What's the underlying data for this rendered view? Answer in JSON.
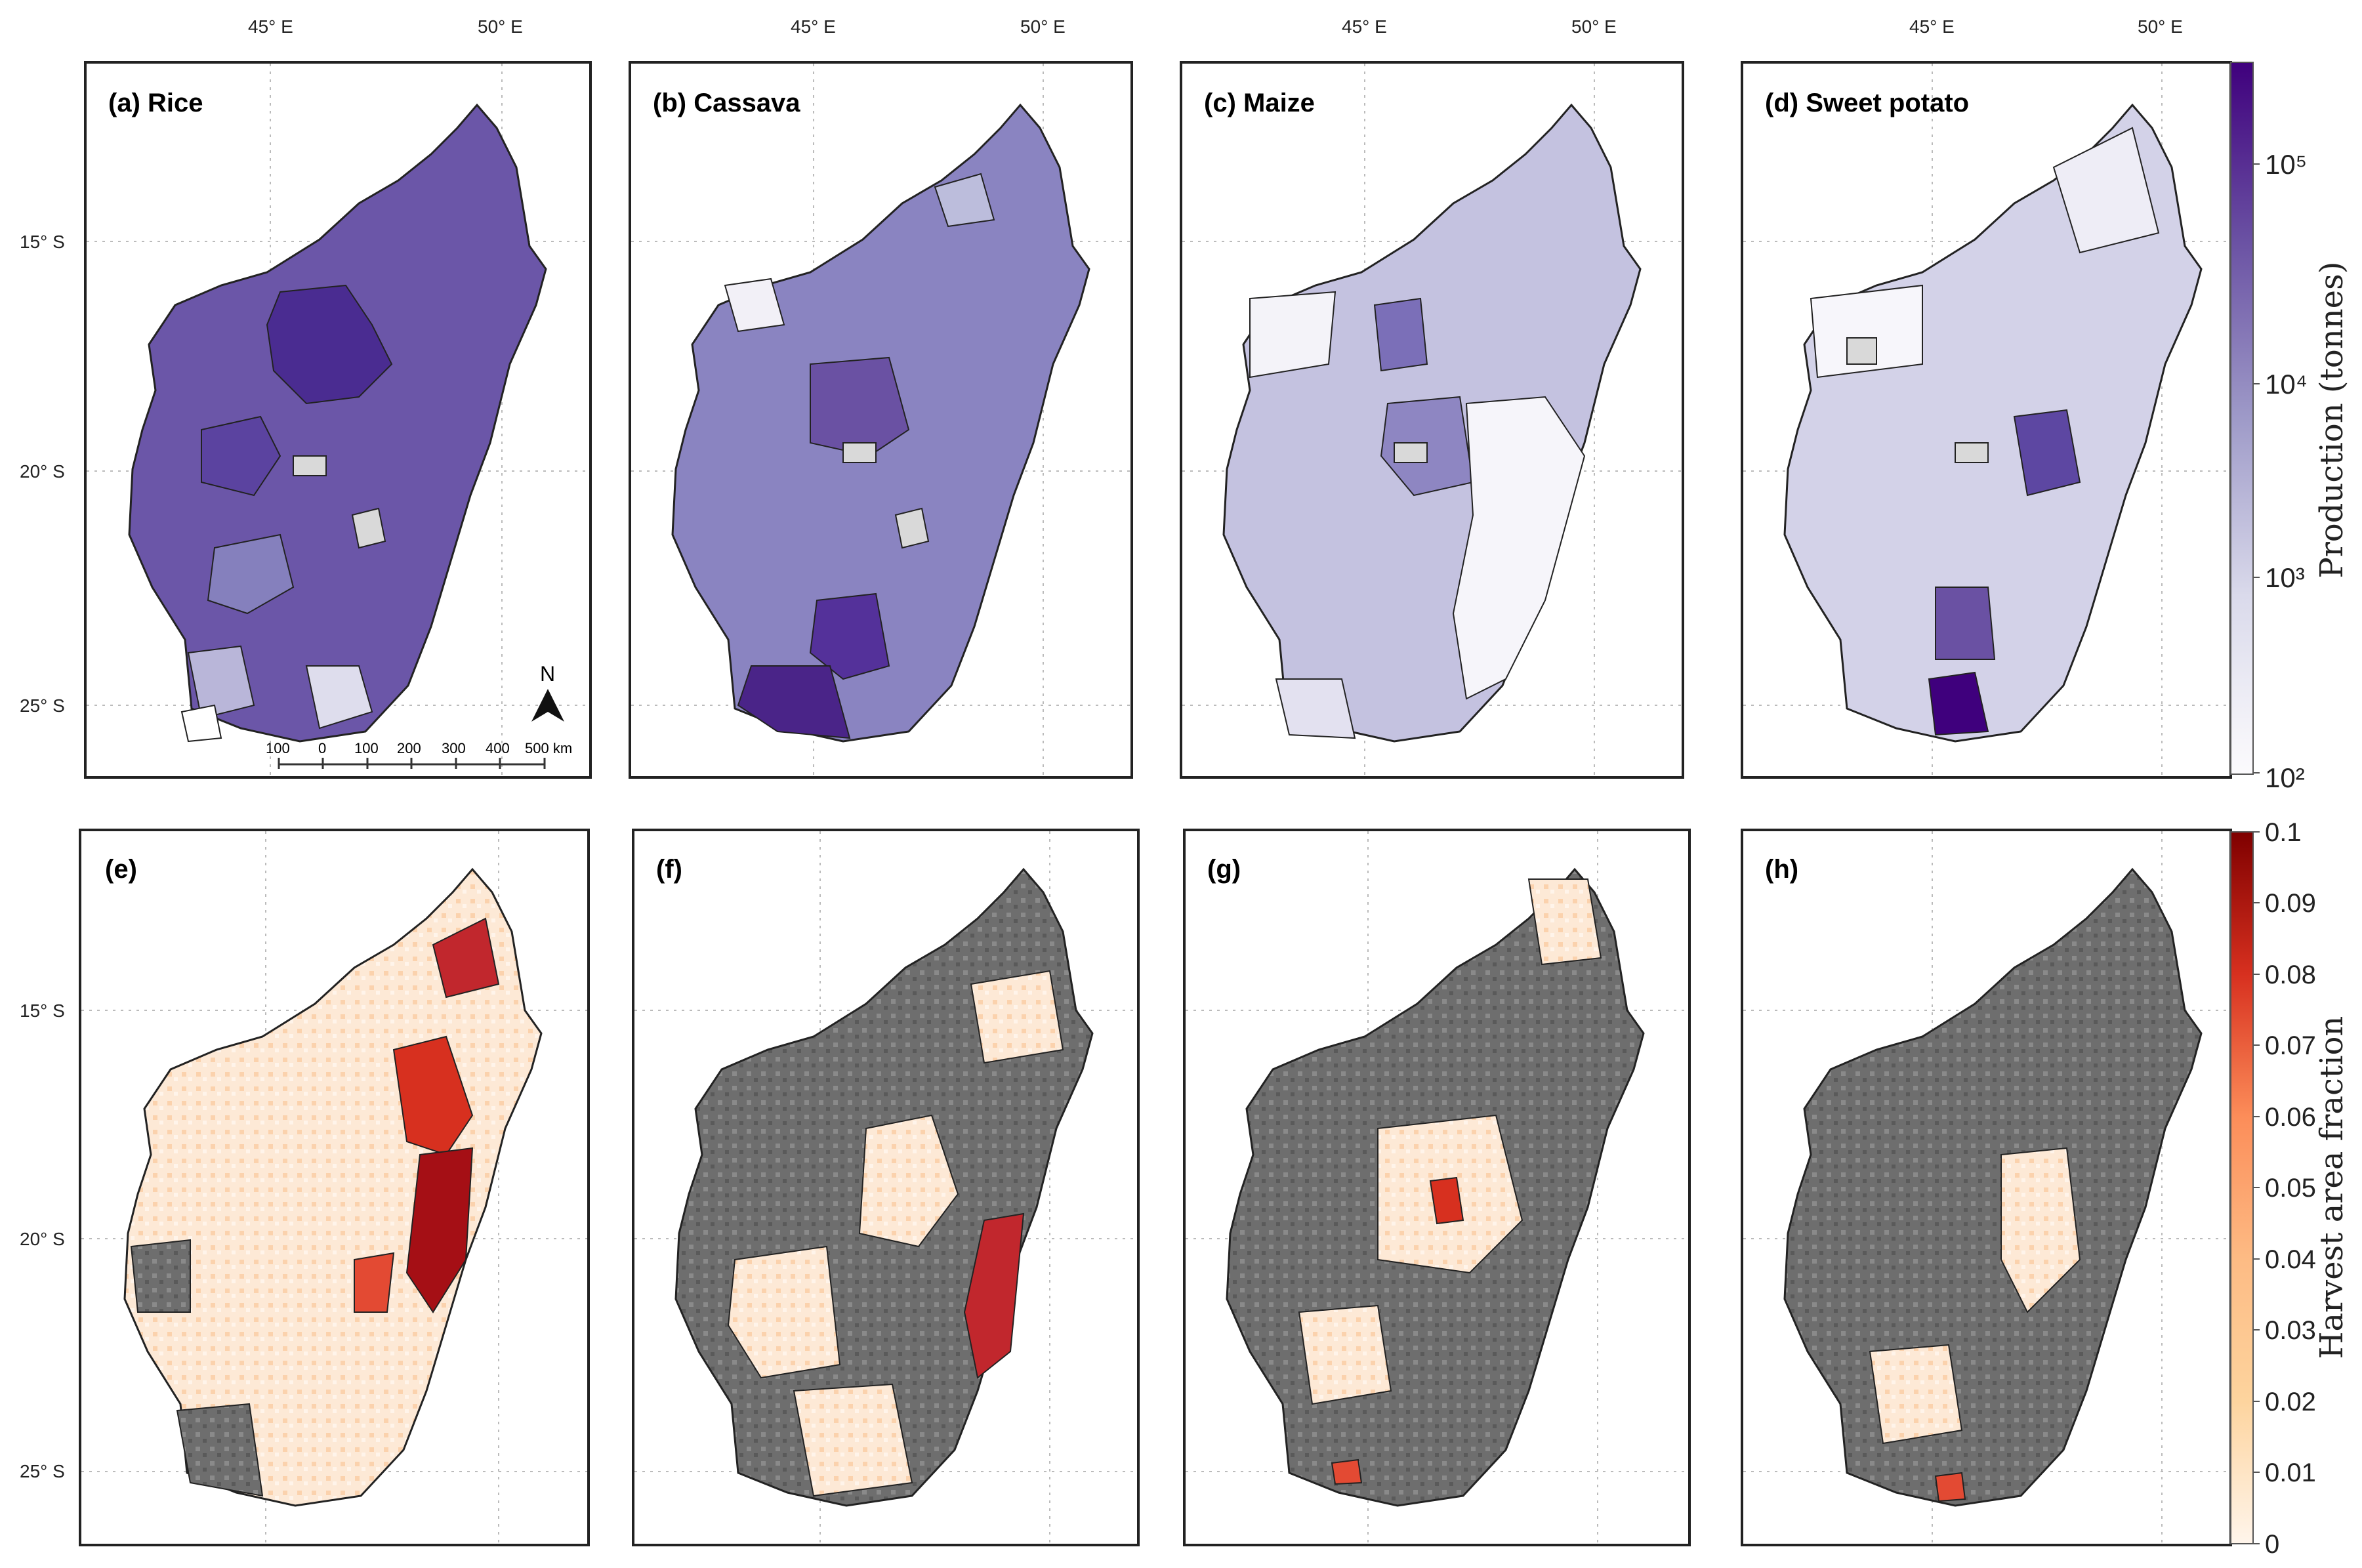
{
  "figure": {
    "lon_labels": [
      "45° E",
      "50° E"
    ],
    "lat_labels": [
      "15° S",
      "20° S",
      "25° S"
    ],
    "production_panels": [
      {
        "label": "(a) Rice"
      },
      {
        "label": "(b) Cassava"
      },
      {
        "label": "(c) Maize"
      },
      {
        "label": "(d) Sweet potato"
      }
    ],
    "harvest_panels": [
      {
        "label": "(e)"
      },
      {
        "label": "(f)"
      },
      {
        "label": "(g)"
      },
      {
        "label": "(h)"
      }
    ],
    "scalebar": {
      "ticks": [
        "100",
        "0",
        "100",
        "200",
        "300",
        "400",
        "500 km"
      ],
      "north_label": "N"
    },
    "production_colorbar": {
      "title": "Production (tonnes)",
      "ticks": [
        "10⁵",
        "10⁴",
        "10³",
        "10²"
      ],
      "colors": {
        "low": "#fcfbfd",
        "mid": "#9e9ac8",
        "high": "#3f007d"
      }
    },
    "harvest_colorbar": {
      "title": "Harvest area fraction",
      "ticks": [
        "0.1",
        "0.09",
        "0.08",
        "0.07",
        "0.06",
        "0.05",
        "0.04",
        "0.03",
        "0.02",
        "0.01",
        "0"
      ],
      "colors": {
        "low": "#fff5eb",
        "mid": "#fc8d59",
        "high": "#7f0000"
      }
    },
    "colors": {
      "no_data": "#d9d9d9",
      "masked": "#6e6e6e",
      "border": "#222222"
    }
  }
}
